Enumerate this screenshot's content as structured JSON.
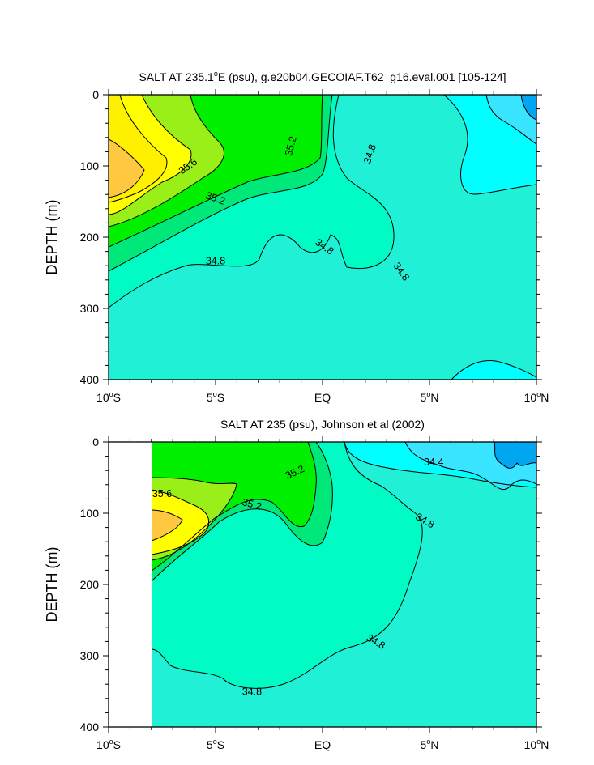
{
  "colors": {
    "s_le_34_2": "#00a6f0",
    "s_34_2_34_4": "#38e4ff",
    "s_34_4_34_6": "#00ffff",
    "s_34_6_34_8": "#1ff0d6",
    "s_34_8_35_0": "#00fcc4",
    "s_35_0_35_2": "#00e87a",
    "s_35_2_35_4": "#00f000",
    "s_35_4_35_6": "#9aef18",
    "s_35_6_35_8": "#ffff00",
    "s_35_8_36_0": "#fff000",
    "s_ge_36_0": "#ffc840",
    "no_data": "#ffffff"
  },
  "chart_data": [
    {
      "type": "contour",
      "title_main": "SALT AT 235.1",
      "title_deg": "o",
      "title_rest": "E (psu), g.e20b04.GECOIAF.T62_g16.eval.001 [105-124]",
      "ylabel": "DEPTH (m)",
      "xlim": [
        -10,
        10
      ],
      "ylim": [
        400,
        0
      ],
      "x_ticks": [
        -10,
        -5,
        0,
        5,
        10
      ],
      "x_tick_labels": [
        {
          "num": "10",
          "deg": "o",
          "hemi": "S"
        },
        {
          "num": "5",
          "deg": "o",
          "hemi": "S"
        },
        {
          "num": "EQ",
          "deg": "",
          "hemi": ""
        },
        {
          "num": "5",
          "deg": "o",
          "hemi": "N"
        },
        {
          "num": "10",
          "deg": "o",
          "hemi": "N"
        }
      ],
      "y_ticks": [
        0,
        100,
        200,
        300,
        400
      ],
      "y_tick_labels": [
        "0",
        "100",
        "200",
        "300",
        "400"
      ],
      "contour_labels": [
        {
          "text": "35.6",
          "x": -6.3,
          "y": 100,
          "angle": 35
        },
        {
          "text": "35.2",
          "x": -1.5,
          "y": 72,
          "angle": 75
        },
        {
          "text": "34.8",
          "x": 2.2,
          "y": 83,
          "angle": 72
        },
        {
          "text": "35.2",
          "x": -5.0,
          "y": 145,
          "angle": -20
        },
        {
          "text": "34.8",
          "x": -5.0,
          "y": 233,
          "angle": 0
        },
        {
          "text": "34.8",
          "x": 0.1,
          "y": 213,
          "angle": -35
        },
        {
          "text": "34.8",
          "x": 3.7,
          "y": 248,
          "angle": -55
        }
      ]
    },
    {
      "type": "contour",
      "title_main": "SALT AT 235 (psu), Johnson et al (2002)",
      "title_deg": "",
      "title_rest": "",
      "ylabel": "DEPTH (m)",
      "xlim": [
        -10,
        10
      ],
      "ylim": [
        400,
        0
      ],
      "data_x_range": [
        -8,
        10
      ],
      "x_ticks": [
        -10,
        -5,
        0,
        5,
        10
      ],
      "x_tick_labels": [
        {
          "num": "10",
          "deg": "o",
          "hemi": "S"
        },
        {
          "num": "5",
          "deg": "o",
          "hemi": "S"
        },
        {
          "num": "EQ",
          "deg": "",
          "hemi": ""
        },
        {
          "num": "5",
          "deg": "o",
          "hemi": "N"
        },
        {
          "num": "10",
          "deg": "o",
          "hemi": "N"
        }
      ],
      "y_ticks": [
        0,
        100,
        200,
        300,
        400
      ],
      "y_tick_labels": [
        "0",
        "100",
        "200",
        "300",
        "400"
      ],
      "contour_labels": [
        {
          "text": "34.4",
          "x": 5.2,
          "y": 28,
          "angle": 0
        },
        {
          "text": "35.2",
          "x": -1.3,
          "y": 42,
          "angle": 25
        },
        {
          "text": "35.6",
          "x": -7.5,
          "y": 72,
          "angle": 0
        },
        {
          "text": "35.2",
          "x": -3.3,
          "y": 87,
          "angle": -15
        },
        {
          "text": "34.8",
          "x": 4.8,
          "y": 110,
          "angle": -30
        },
        {
          "text": "34.8",
          "x": 2.5,
          "y": 280,
          "angle": -30
        },
        {
          "text": "34.8",
          "x": -3.3,
          "y": 350,
          "angle": 0
        }
      ]
    }
  ]
}
